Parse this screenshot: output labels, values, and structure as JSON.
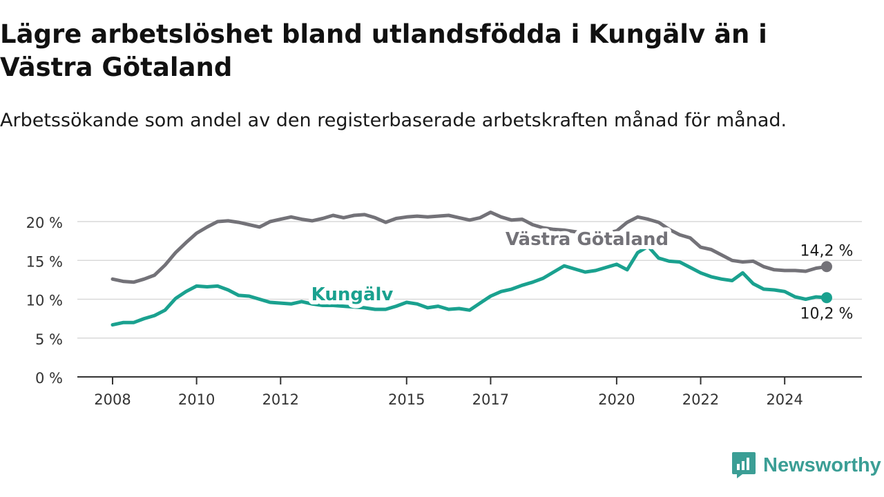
{
  "header": {
    "title": "Lägre arbetslöshet bland utlandsfödda i Kungälv än i Västra Götaland",
    "subtitle": "Arbetssökande som andel av den registerbaserade arbetskraften månad för månad."
  },
  "brand": {
    "name": "Newsworthy",
    "icon": "newsworthy-logo-icon",
    "color": "#3b9e95"
  },
  "chart_data": {
    "type": "line",
    "title": "Lägre arbetslöshet bland utlandsfödda i Kungälv än i Västra Götaland",
    "subtitle": "Arbetssökande som andel av den registerbaserade arbetskraften månad för månad.",
    "xlabel": "",
    "ylabel": "",
    "xlim": [
      2008,
      2025
    ],
    "ylim": [
      0,
      20
    ],
    "x_ticks": [
      2008,
      2010,
      2012,
      2015,
      2017,
      2020,
      2022,
      2024
    ],
    "x_tick_labels": [
      "2008",
      "2010",
      "2012",
      "2015",
      "2017",
      "2020",
      "2022",
      "2024"
    ],
    "y_ticks": [
      0,
      5,
      10,
      15,
      20
    ],
    "y_tick_labels": [
      "0 %",
      "5 %",
      "10 %",
      "15 %",
      "20 %"
    ],
    "grid": "horizontal",
    "legend": "inline-labels",
    "series": [
      {
        "name": "Västra Götaland",
        "color": "#737278",
        "end_label": "14,2 %",
        "points": [
          [
            2008.0,
            12.6
          ],
          [
            2008.25,
            12.3
          ],
          [
            2008.5,
            12.2
          ],
          [
            2008.75,
            12.6
          ],
          [
            2009.0,
            13.1
          ],
          [
            2009.25,
            14.4
          ],
          [
            2009.5,
            16.0
          ],
          [
            2009.75,
            17.3
          ],
          [
            2010.0,
            18.5
          ],
          [
            2010.25,
            19.3
          ],
          [
            2010.5,
            20.0
          ],
          [
            2010.75,
            20.1
          ],
          [
            2011.0,
            19.9
          ],
          [
            2011.25,
            19.6
          ],
          [
            2011.5,
            19.3
          ],
          [
            2011.75,
            20.0
          ],
          [
            2012.0,
            20.3
          ],
          [
            2012.25,
            20.6
          ],
          [
            2012.5,
            20.3
          ],
          [
            2012.75,
            20.1
          ],
          [
            2013.0,
            20.4
          ],
          [
            2013.25,
            20.8
          ],
          [
            2013.5,
            20.5
          ],
          [
            2013.75,
            20.8
          ],
          [
            2014.0,
            20.9
          ],
          [
            2014.25,
            20.5
          ],
          [
            2014.5,
            19.9
          ],
          [
            2014.75,
            20.4
          ],
          [
            2015.0,
            20.6
          ],
          [
            2015.25,
            20.7
          ],
          [
            2015.5,
            20.6
          ],
          [
            2015.75,
            20.7
          ],
          [
            2016.0,
            20.8
          ],
          [
            2016.25,
            20.5
          ],
          [
            2016.5,
            20.2
          ],
          [
            2016.75,
            20.5
          ],
          [
            2017.0,
            21.2
          ],
          [
            2017.25,
            20.6
          ],
          [
            2017.5,
            20.2
          ],
          [
            2017.75,
            20.3
          ],
          [
            2018.0,
            19.6
          ],
          [
            2018.25,
            19.2
          ],
          [
            2018.5,
            19.0
          ],
          [
            2018.75,
            18.9
          ],
          [
            2019.0,
            18.7
          ],
          [
            2019.25,
            18.5
          ],
          [
            2019.5,
            18.3
          ],
          [
            2019.75,
            18.5
          ],
          [
            2020.0,
            18.8
          ],
          [
            2020.25,
            19.9
          ],
          [
            2020.5,
            20.6
          ],
          [
            2020.75,
            20.3
          ],
          [
            2021.0,
            19.9
          ],
          [
            2021.25,
            19.0
          ],
          [
            2021.5,
            18.3
          ],
          [
            2021.75,
            17.9
          ],
          [
            2022.0,
            16.7
          ],
          [
            2022.25,
            16.4
          ],
          [
            2022.5,
            15.7
          ],
          [
            2022.75,
            15.0
          ],
          [
            2023.0,
            14.8
          ],
          [
            2023.25,
            14.9
          ],
          [
            2023.5,
            14.2
          ],
          [
            2023.75,
            13.8
          ],
          [
            2024.0,
            13.7
          ],
          [
            2024.25,
            13.7
          ],
          [
            2024.5,
            13.6
          ],
          [
            2024.75,
            14.0
          ],
          [
            2025.0,
            14.2
          ]
        ]
      },
      {
        "name": "Kungälv",
        "color": "#1aa18f",
        "end_label": "10,2 %",
        "points": [
          [
            2008.0,
            6.7
          ],
          [
            2008.25,
            7.0
          ],
          [
            2008.5,
            7.0
          ],
          [
            2008.75,
            7.5
          ],
          [
            2009.0,
            7.9
          ],
          [
            2009.25,
            8.6
          ],
          [
            2009.5,
            10.1
          ],
          [
            2009.75,
            11.0
          ],
          [
            2010.0,
            11.7
          ],
          [
            2010.25,
            11.6
          ],
          [
            2010.5,
            11.7
          ],
          [
            2010.75,
            11.2
          ],
          [
            2011.0,
            10.5
          ],
          [
            2011.25,
            10.4
          ],
          [
            2011.5,
            10.0
          ],
          [
            2011.75,
            9.6
          ],
          [
            2012.0,
            9.5
          ],
          [
            2012.25,
            9.4
          ],
          [
            2012.5,
            9.7
          ],
          [
            2012.75,
            9.4
          ],
          [
            2013.0,
            9.2
          ],
          [
            2013.25,
            9.2
          ],
          [
            2013.5,
            9.1
          ],
          [
            2013.75,
            9.0
          ],
          [
            2014.0,
            8.9
          ],
          [
            2014.25,
            8.7
          ],
          [
            2014.5,
            8.7
          ],
          [
            2014.75,
            9.1
          ],
          [
            2015.0,
            9.6
          ],
          [
            2015.25,
            9.4
          ],
          [
            2015.5,
            8.9
          ],
          [
            2015.75,
            9.1
          ],
          [
            2016.0,
            8.7
          ],
          [
            2016.25,
            8.8
          ],
          [
            2016.5,
            8.6
          ],
          [
            2016.75,
            9.5
          ],
          [
            2017.0,
            10.4
          ],
          [
            2017.25,
            11.0
          ],
          [
            2017.5,
            11.3
          ],
          [
            2017.75,
            11.8
          ],
          [
            2018.0,
            12.2
          ],
          [
            2018.25,
            12.7
          ],
          [
            2018.5,
            13.5
          ],
          [
            2018.75,
            14.3
          ],
          [
            2019.0,
            13.9
          ],
          [
            2019.25,
            13.5
          ],
          [
            2019.5,
            13.7
          ],
          [
            2019.75,
            14.1
          ],
          [
            2020.0,
            14.5
          ],
          [
            2020.25,
            13.8
          ],
          [
            2020.5,
            16.0
          ],
          [
            2020.75,
            16.8
          ],
          [
            2021.0,
            15.3
          ],
          [
            2021.25,
            14.9
          ],
          [
            2021.5,
            14.8
          ],
          [
            2021.75,
            14.1
          ],
          [
            2022.0,
            13.4
          ],
          [
            2022.25,
            12.9
          ],
          [
            2022.5,
            12.6
          ],
          [
            2022.75,
            12.4
          ],
          [
            2023.0,
            13.4
          ],
          [
            2023.25,
            12.0
          ],
          [
            2023.5,
            11.3
          ],
          [
            2023.75,
            11.2
          ],
          [
            2024.0,
            11.0
          ],
          [
            2024.25,
            10.3
          ],
          [
            2024.5,
            10.0
          ],
          [
            2024.75,
            10.3
          ],
          [
            2025.0,
            10.2
          ]
        ]
      }
    ]
  }
}
